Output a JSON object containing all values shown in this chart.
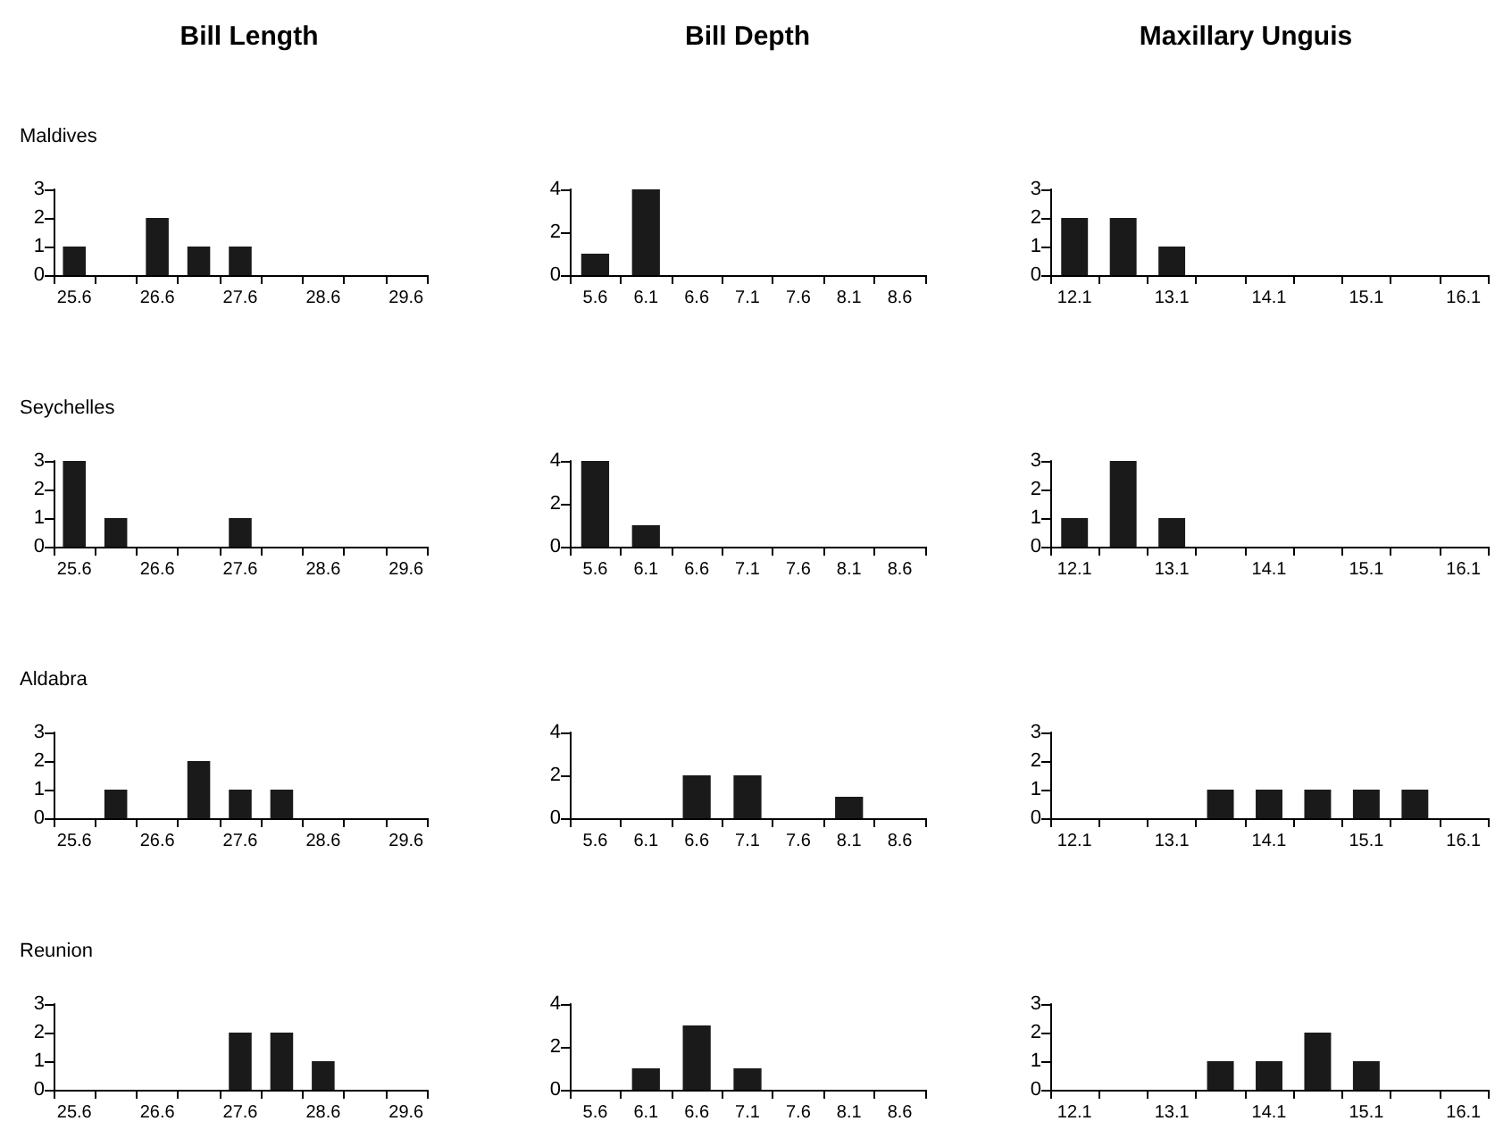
{
  "chart_data": [
    {
      "type": "bar",
      "title": "Bill Length",
      "subtitle": "Maldives",
      "categories": [
        "25.6",
        null,
        "26.6",
        null,
        "27.6",
        null,
        "28.6",
        null,
        "29.6"
      ],
      "values": [
        1,
        0,
        2,
        1,
        1,
        0,
        0,
        0,
        0
      ],
      "color": "#1a1a1a",
      "ylim": [
        0,
        3
      ],
      "yticks": [
        0,
        1,
        2,
        3
      ]
    },
    {
      "type": "bar",
      "title": "Bill Depth",
      "categories": [
        "5.6",
        "6.1",
        "6.6",
        "7.1",
        "7.6",
        "8.1",
        "8.6"
      ],
      "values": [
        1,
        4,
        0,
        0,
        0,
        0,
        0
      ],
      "color": "#1a1a1a",
      "ylim": [
        0,
        4
      ],
      "yticks": [
        0,
        2,
        4
      ]
    },
    {
      "type": "bar",
      "title": "Maxillary Unguis",
      "categories": [
        "12.1",
        null,
        "13.1",
        null,
        "14.1",
        null,
        "15.1",
        null,
        "16.1"
      ],
      "values": [
        2,
        2,
        1,
        0,
        0,
        0,
        0,
        0,
        0
      ],
      "color": "#1a1a1a",
      "ylim": [
        0,
        3
      ],
      "yticks": [
        0,
        1,
        2,
        3
      ]
    },
    {
      "type": "bar",
      "subtitle": "Seychelles",
      "categories": [
        "25.6",
        null,
        "26.6",
        null,
        "27.6",
        null,
        "28.6",
        null,
        "29.6"
      ],
      "values": [
        3,
        1,
        0,
        0,
        1,
        0,
        0,
        0,
        0
      ],
      "color": "#1a1a1a",
      "ylim": [
        0,
        3
      ],
      "yticks": [
        0,
        1,
        2,
        3
      ]
    },
    {
      "type": "bar",
      "categories": [
        "5.6",
        "6.1",
        "6.6",
        "7.1",
        "7.6",
        "8.1",
        "8.6"
      ],
      "values": [
        4,
        1,
        0,
        0,
        0,
        0,
        0
      ],
      "color": "#1a1a1a",
      "ylim": [
        0,
        4
      ],
      "yticks": [
        0,
        2,
        4
      ]
    },
    {
      "type": "bar",
      "categories": [
        "12.1",
        null,
        "13.1",
        null,
        "14.1",
        null,
        "15.1",
        null,
        "16.1"
      ],
      "values": [
        1,
        3,
        1,
        0,
        0,
        0,
        0,
        0,
        0
      ],
      "color": "#1a1a1a",
      "ylim": [
        0,
        3
      ],
      "yticks": [
        0,
        1,
        2,
        3
      ]
    },
    {
      "type": "bar",
      "subtitle": "Aldabra",
      "categories": [
        "25.6",
        null,
        "26.6",
        null,
        "27.6",
        null,
        "28.6",
        null,
        "29.6"
      ],
      "values": [
        0,
        1,
        0,
        2,
        1,
        1,
        0,
        0,
        0
      ],
      "color": "#1a1a1a",
      "ylim": [
        0,
        3
      ],
      "yticks": [
        0,
        1,
        2,
        3
      ]
    },
    {
      "type": "bar",
      "categories": [
        "5.6",
        "6.1",
        "6.6",
        "7.1",
        "7.6",
        "8.1",
        "8.6"
      ],
      "values": [
        0,
        0,
        2,
        2,
        0,
        1,
        0
      ],
      "color": "#1a1a1a",
      "ylim": [
        0,
        4
      ],
      "yticks": [
        0,
        2,
        4
      ]
    },
    {
      "type": "bar",
      "categories": [
        "12.1",
        null,
        "13.1",
        null,
        "14.1",
        null,
        "15.1",
        null,
        "16.1"
      ],
      "values": [
        0,
        0,
        0,
        1,
        1,
        1,
        1,
        1,
        0
      ],
      "color": "#1a1a1a",
      "ylim": [
        0,
        3
      ],
      "yticks": [
        0,
        1,
        2,
        3
      ]
    },
    {
      "type": "bar",
      "subtitle": "Reunion",
      "categories": [
        "25.6",
        null,
        "26.6",
        null,
        "27.6",
        null,
        "28.6",
        null,
        "29.6"
      ],
      "values": [
        0,
        0,
        0,
        0,
        2,
        2,
        1,
        0,
        0
      ],
      "color": "#1a1a1a",
      "ylim": [
        0,
        3
      ],
      "yticks": [
        0,
        1,
        2,
        3
      ]
    },
    {
      "type": "bar",
      "categories": [
        "5.6",
        "6.1",
        "6.6",
        "7.1",
        "7.6",
        "8.1",
        "8.6"
      ],
      "values": [
        0,
        1,
        3,
        1,
        0,
        0,
        0
      ],
      "color": "#1a1a1a",
      "ylim": [
        0,
        4
      ],
      "yticks": [
        0,
        2,
        4
      ]
    },
    {
      "type": "bar",
      "categories": [
        "12.1",
        null,
        "13.1",
        null,
        "14.1",
        null,
        "15.1",
        null,
        "16.1"
      ],
      "values": [
        0,
        0,
        0,
        1,
        1,
        2,
        1,
        0,
        0
      ],
      "color": "#1a1a1a",
      "ylim": [
        0,
        3
      ],
      "yticks": [
        0,
        1,
        2,
        3
      ]
    }
  ]
}
